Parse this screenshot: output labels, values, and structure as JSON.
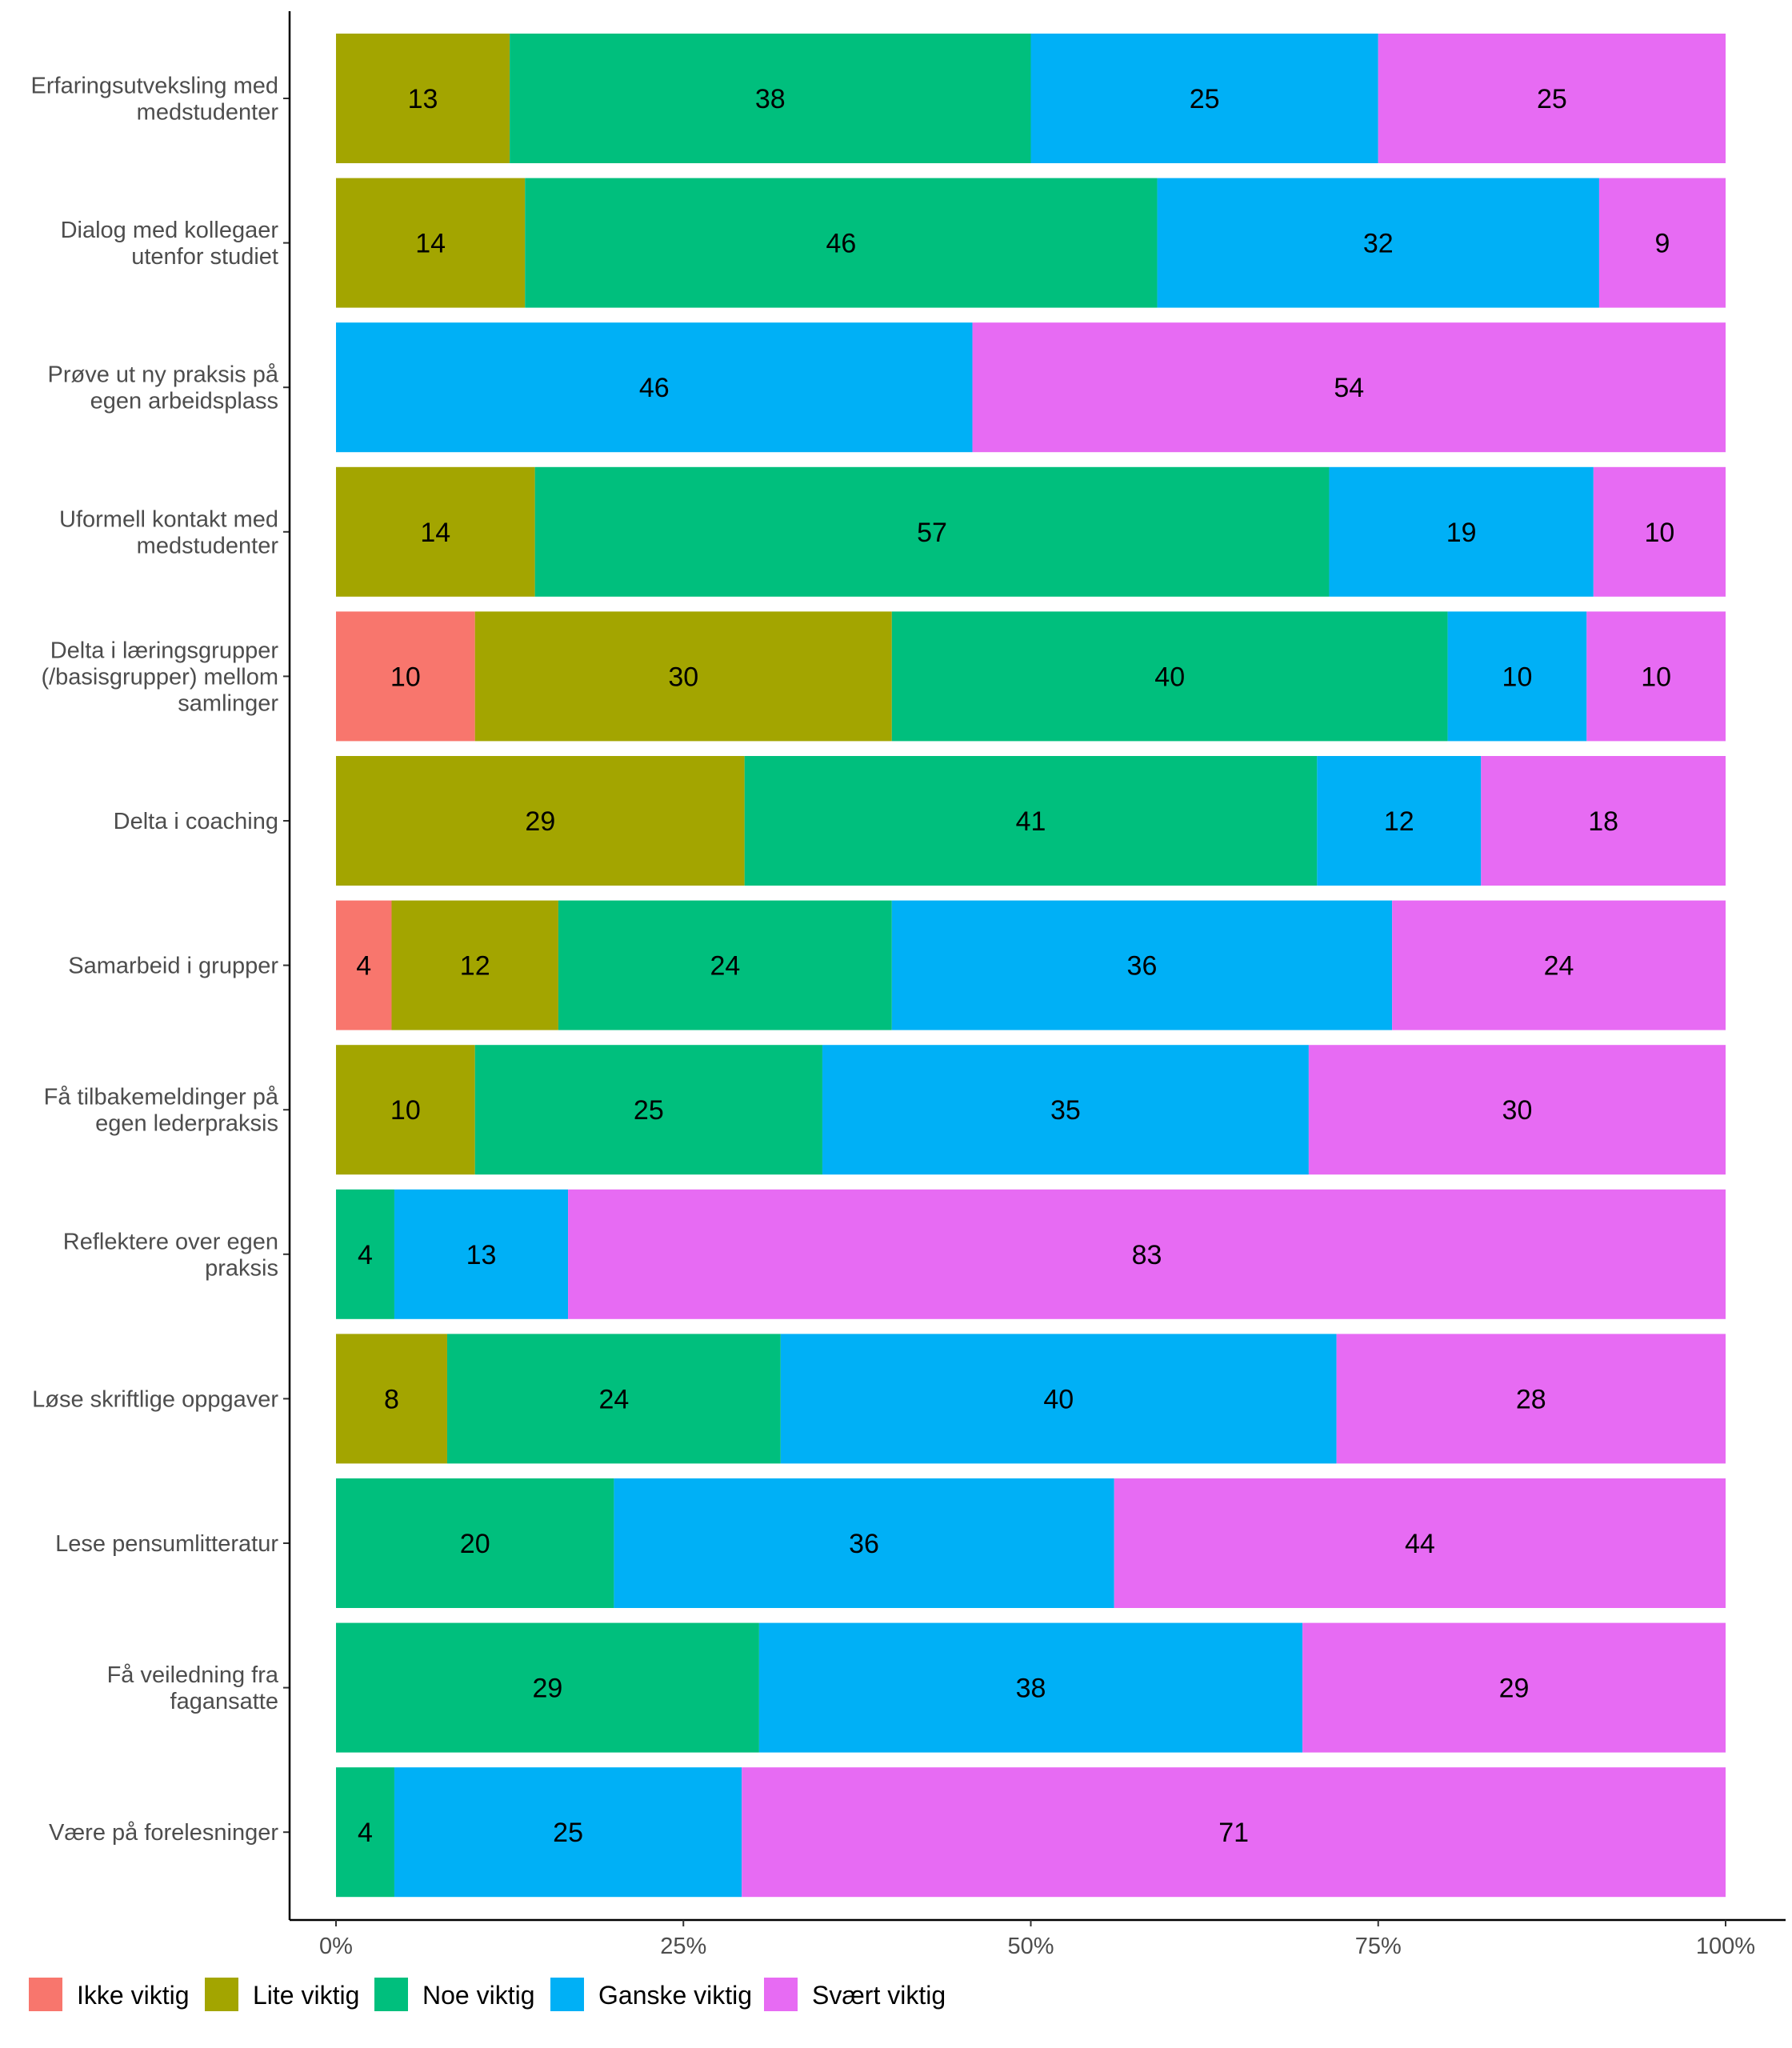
{
  "chart_data": {
    "type": "bar",
    "orientation": "horizontal",
    "stacked": "percent",
    "categories": [
      [
        "Erfaringsutveksling med",
        "medstudenter"
      ],
      [
        "Dialog med kollegaer",
        "utenfor studiet"
      ],
      [
        "Prøve ut ny praksis på",
        "egen arbeidsplass"
      ],
      [
        "Uformell kontakt med",
        "medstudenter"
      ],
      [
        "Delta i læringsgrupper",
        "(/basisgrupper) mellom",
        "samlinger"
      ],
      [
        "Delta i coaching"
      ],
      [
        "Samarbeid i grupper"
      ],
      [
        "Få tilbakemeldinger på",
        "egen lederpraksis"
      ],
      [
        "Reflektere over egen",
        "praksis"
      ],
      [
        "Løse skriftlige oppgaver"
      ],
      [
        "Lese pensumlitteratur"
      ],
      [
        "Få veiledning fra",
        "fagansatte"
      ],
      [
        "Være på forelesninger"
      ]
    ],
    "series": [
      {
        "name": "Ikke viktig",
        "color": "#F8766D",
        "values": [
          0,
          0,
          0,
          0,
          10,
          0,
          4,
          0,
          0,
          0,
          0,
          0,
          0
        ]
      },
      {
        "name": "Lite viktig",
        "color": "#A3A500",
        "values": [
          12.5,
          13.6,
          0,
          14.3,
          30,
          29.4,
          12,
          10,
          0,
          8,
          0,
          0,
          0
        ]
      },
      {
        "name": "Noe viktig",
        "color": "#00BF7D",
        "values": [
          37.5,
          45.5,
          0,
          57.1,
          40,
          41.2,
          24,
          25,
          4.2,
          24,
          20,
          29.2,
          4.2
        ]
      },
      {
        "name": "Ganske viktig",
        "color": "#00B0F6",
        "values": [
          25,
          31.8,
          45.8,
          19,
          10,
          11.8,
          36,
          35,
          12.5,
          40,
          36,
          37.5,
          25
        ]
      },
      {
        "name": "Svært viktig",
        "color": "#E76BF3",
        "values": [
          25,
          9.1,
          54.2,
          9.5,
          10,
          17.6,
          24,
          30,
          83.3,
          28,
          44,
          29.2,
          70.8
        ]
      }
    ],
    "xlim": [
      0,
      100
    ],
    "x_ticks": [
      "0%",
      "25%",
      "50%",
      "75%",
      "100%"
    ],
    "title": "",
    "xlabel": "",
    "ylabel": "",
    "grid": false,
    "legend_position": "bottom-left"
  }
}
